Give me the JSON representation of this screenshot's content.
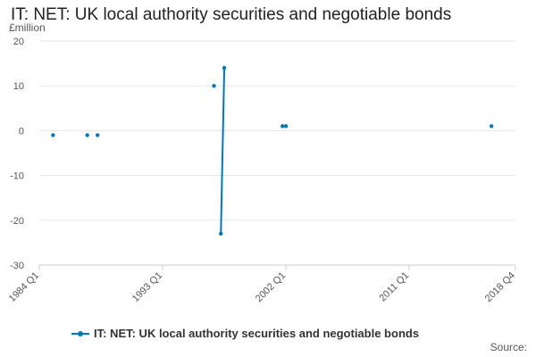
{
  "title": "IT: NET: UK local authority securities and negotiable bonds",
  "source_label": "Source:",
  "colors": {
    "series": "#0077b6",
    "grid": "#e6e6e6",
    "axis": "#cccccc",
    "text": "#555555"
  },
  "chart_data": {
    "type": "line",
    "title": "IT: NET: UK local authority securities and negotiable bonds",
    "ylabel": "£million",
    "ylim": [
      -30,
      20
    ],
    "yticks": [
      20,
      10,
      0,
      -10,
      -20,
      -30
    ],
    "x_axis": {
      "start": "1984 Q1",
      "end": "2018 Q4"
    },
    "xticks": [
      "1984 Q1",
      "1993 Q1",
      "2002 Q1",
      "2011 Q1",
      "2018 Q4"
    ],
    "grid": true,
    "legend": "bottom",
    "series": [
      {
        "name": "IT: NET: UK local authority securities and negotiable bonds",
        "points": [
          {
            "x": "1985 Q1",
            "y": -1
          },
          {
            "x": "1987 Q3",
            "y": -1
          },
          {
            "x": "1988 Q2",
            "y": -1
          },
          {
            "x": "1996 Q4",
            "y": 10
          },
          {
            "x": "1997 Q2",
            "y": -23
          },
          {
            "x": "1997 Q3",
            "y": 14
          },
          {
            "x": "2001 Q4",
            "y": 1
          },
          {
            "x": "2002 Q1",
            "y": 1
          },
          {
            "x": "2017 Q1",
            "y": 1
          }
        ]
      }
    ]
  }
}
